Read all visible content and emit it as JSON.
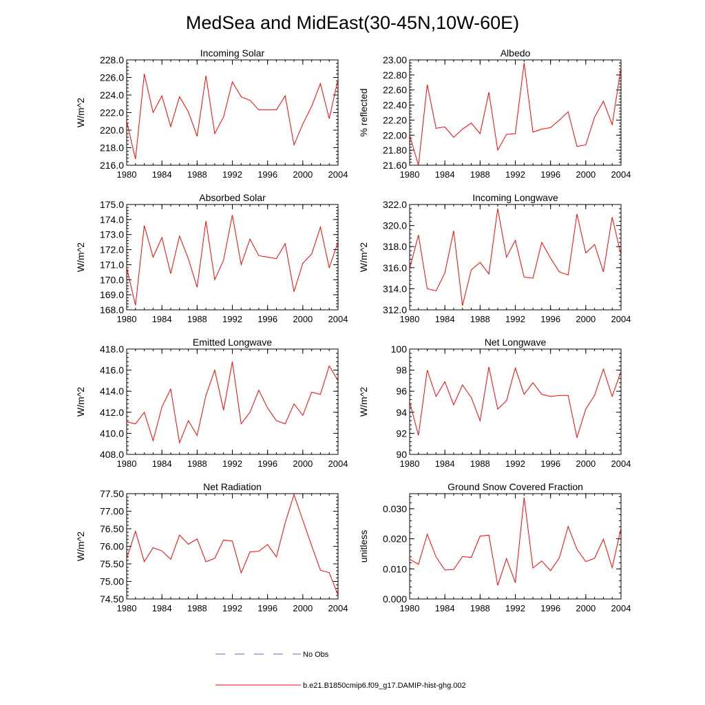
{
  "figure": {
    "title": "MedSea and MidEast(30-45N,10W-60E)",
    "legend": [
      {
        "label": "No Obs",
        "color": "#6666cc",
        "style": "dashed"
      },
      {
        "label": "b.e21.B1850cmip6.f09_g17.DAMIP-hist-ghg.002",
        "color": "#ff0000",
        "style": "solid"
      }
    ]
  },
  "chart_data": [
    {
      "type": "line",
      "title": "Incoming Solar",
      "ylabel": "W/m^2",
      "xlim": [
        1980,
        2004
      ],
      "ylim": [
        216.0,
        228.0
      ],
      "yticks": [
        216.0,
        218.0,
        220.0,
        222.0,
        224.0,
        226.0,
        228.0
      ],
      "ytick_labels": [
        "216.0",
        "218.0",
        "220.0",
        "222.0",
        "224.0",
        "226.0",
        "228.0"
      ],
      "xticks": [
        1980,
        1984,
        1988,
        1992,
        1996,
        2000,
        2004
      ],
      "xtick_labels": [
        "1980",
        "1984",
        "1988",
        "1992",
        "1996",
        "2000",
        "2004"
      ],
      "x": [
        1980,
        1981,
        1982,
        1983,
        1984,
        1985,
        1986,
        1987,
        1988,
        1989,
        1990,
        1991,
        1992,
        1993,
        1994,
        1995,
        1996,
        1997,
        1998,
        1999,
        2000,
        2001,
        2002,
        2003,
        2004
      ],
      "series": [
        {
          "color": "#ff0000",
          "values": [
            221.0,
            216.7,
            226.4,
            222.0,
            223.9,
            220.4,
            223.8,
            222.1,
            219.3,
            226.2,
            219.6,
            221.5,
            225.5,
            223.8,
            223.4,
            222.3,
            222.3,
            222.3,
            223.9,
            218.3,
            220.7,
            222.7,
            225.3,
            221.3,
            225.8
          ]
        }
      ]
    },
    {
      "type": "line",
      "title": "Albedo",
      "ylabel": "% reflected",
      "xlim": [
        1980,
        2004
      ],
      "ylim": [
        21.6,
        23.0
      ],
      "yticks": [
        21.6,
        21.8,
        22.0,
        22.2,
        22.4,
        22.6,
        22.8,
        23.0
      ],
      "ytick_labels": [
        "21.60",
        "21.80",
        "22.00",
        "22.20",
        "22.40",
        "22.60",
        "22.80",
        "23.00"
      ],
      "xticks": [
        1980,
        1984,
        1988,
        1992,
        1996,
        2000,
        2004
      ],
      "xtick_labels": [
        "1980",
        "1984",
        "1988",
        "1992",
        "1996",
        "2000",
        "2004"
      ],
      "x": [
        1980,
        1981,
        1982,
        1983,
        1984,
        1985,
        1986,
        1987,
        1988,
        1989,
        1990,
        1991,
        1992,
        1993,
        1994,
        1995,
        1996,
        1997,
        1998,
        1999,
        2000,
        2001,
        2002,
        2003,
        2004
      ],
      "series": [
        {
          "color": "#ff0000",
          "values": [
            22.0,
            21.6,
            22.67,
            22.09,
            22.11,
            21.97,
            22.08,
            22.16,
            22.02,
            22.57,
            21.8,
            22.01,
            22.02,
            22.96,
            22.04,
            22.08,
            22.1,
            22.2,
            22.31,
            21.85,
            21.87,
            22.24,
            22.45,
            22.14,
            22.9
          ]
        }
      ]
    },
    {
      "type": "line",
      "title": "Absorbed Solar",
      "ylabel": "W/m^2",
      "xlim": [
        1980,
        2004
      ],
      "ylim": [
        168.0,
        175.0
      ],
      "yticks": [
        168.0,
        169.0,
        170.0,
        171.0,
        172.0,
        173.0,
        174.0,
        175.0
      ],
      "ytick_labels": [
        "168.0",
        "169.0",
        "170.0",
        "171.0",
        "172.0",
        "173.0",
        "174.0",
        "175.0"
      ],
      "xticks": [
        1980,
        1984,
        1988,
        1992,
        1996,
        2000,
        2004
      ],
      "xtick_labels": [
        "1980",
        "1984",
        "1988",
        "1992",
        "1996",
        "2000",
        "2004"
      ],
      "x": [
        1980,
        1981,
        1982,
        1983,
        1984,
        1985,
        1986,
        1987,
        1988,
        1989,
        1990,
        1991,
        1992,
        1993,
        1994,
        1995,
        1996,
        1997,
        1998,
        1999,
        2000,
        2001,
        2002,
        2003,
        2004
      ],
      "series": [
        {
          "color": "#ff0000",
          "values": [
            170.8,
            168.3,
            173.6,
            171.5,
            172.8,
            170.4,
            172.9,
            171.4,
            169.5,
            173.9,
            170.0,
            171.3,
            174.3,
            171.0,
            172.7,
            171.6,
            171.5,
            171.4,
            172.4,
            169.2,
            171.1,
            171.7,
            173.5,
            170.8,
            172.5
          ]
        }
      ]
    },
    {
      "type": "line",
      "title": "Incoming Longwave",
      "ylabel": "W/m^2",
      "xlim": [
        1980,
        2004
      ],
      "ylim": [
        312.0,
        322.0
      ],
      "yticks": [
        312.0,
        314.0,
        316.0,
        318.0,
        320.0,
        322.0
      ],
      "ytick_labels": [
        "312.0",
        "314.0",
        "316.0",
        "318.0",
        "320.0",
        "322.0"
      ],
      "xticks": [
        1980,
        1984,
        1988,
        1992,
        1996,
        2000,
        2004
      ],
      "xtick_labels": [
        "1980",
        "1984",
        "1988",
        "1992",
        "1996",
        "2000",
        "2004"
      ],
      "x": [
        1980,
        1981,
        1982,
        1983,
        1984,
        1985,
        1986,
        1987,
        1988,
        1989,
        1990,
        1991,
        1992,
        1993,
        1994,
        1995,
        1996,
        1997,
        1998,
        1999,
        2000,
        2001,
        2002,
        2003,
        2004
      ],
      "series": [
        {
          "color": "#ff0000",
          "values": [
            315.9,
            319.1,
            314.0,
            313.8,
            315.5,
            319.5,
            312.4,
            315.8,
            316.5,
            315.4,
            321.6,
            317.0,
            318.6,
            315.1,
            315.0,
            318.4,
            316.9,
            315.6,
            315.3,
            321.1,
            317.4,
            318.2,
            315.6,
            320.8,
            317.2
          ]
        }
      ]
    },
    {
      "type": "line",
      "title": "Emitted Longwave",
      "ylabel": "W/m^2",
      "xlim": [
        1980,
        2004
      ],
      "ylim": [
        408.0,
        418.0
      ],
      "yticks": [
        408.0,
        410.0,
        412.0,
        414.0,
        416.0,
        418.0
      ],
      "ytick_labels": [
        "408.0",
        "410.0",
        "412.0",
        "414.0",
        "416.0",
        "418.0"
      ],
      "xticks": [
        1980,
        1984,
        1988,
        1992,
        1996,
        2000,
        2004
      ],
      "xtick_labels": [
        "1980",
        "1984",
        "1988",
        "1992",
        "1996",
        "2000",
        "2004"
      ],
      "x": [
        1980,
        1981,
        1982,
        1983,
        1984,
        1985,
        1986,
        1987,
        1988,
        1989,
        1990,
        1991,
        1992,
        1993,
        1994,
        1995,
        1996,
        1997,
        1998,
        1999,
        2000,
        2001,
        2002,
        2003,
        2004
      ],
      "series": [
        {
          "color": "#ff0000",
          "values": [
            411.1,
            410.9,
            412.0,
            409.3,
            412.5,
            414.2,
            409.1,
            411.2,
            409.8,
            413.6,
            416.0,
            412.2,
            416.8,
            410.9,
            412.0,
            414.1,
            412.4,
            411.2,
            410.9,
            412.8,
            411.7,
            413.9,
            413.7,
            416.4,
            415.0
          ]
        }
      ]
    },
    {
      "type": "line",
      "title": "Net Longwave",
      "ylabel": "W/m^2",
      "xlim": [
        1980,
        2004
      ],
      "ylim": [
        90,
        100
      ],
      "yticks": [
        90,
        92,
        94,
        96,
        98,
        100
      ],
      "ytick_labels": [
        "90",
        "92",
        "94",
        "96",
        "98",
        "100"
      ],
      "xticks": [
        1980,
        1984,
        1988,
        1992,
        1996,
        2000,
        2004
      ],
      "xtick_labels": [
        "1980",
        "1984",
        "1988",
        "1992",
        "1996",
        "2000",
        "2004"
      ],
      "x": [
        1980,
        1981,
        1982,
        1983,
        1984,
        1985,
        1986,
        1987,
        1988,
        1989,
        1990,
        1991,
        1992,
        1993,
        1994,
        1995,
        1996,
        1997,
        1998,
        1999,
        2000,
        2001,
        2002,
        2003,
        2004
      ],
      "series": [
        {
          "color": "#ff0000",
          "values": [
            95.0,
            91.8,
            98.0,
            95.5,
            96.9,
            94.7,
            96.6,
            95.4,
            93.2,
            98.3,
            94.3,
            95.1,
            98.2,
            95.7,
            96.8,
            95.7,
            95.5,
            95.6,
            95.6,
            91.6,
            94.3,
            95.6,
            98.1,
            95.5,
            97.9
          ]
        }
      ]
    },
    {
      "type": "line",
      "title": "Net Radiation",
      "ylabel": "W/m^2",
      "xlim": [
        1980,
        2004
      ],
      "ylim": [
        74.5,
        77.5
      ],
      "yticks": [
        74.5,
        75.0,
        75.5,
        76.0,
        76.5,
        77.0,
        77.5
      ],
      "ytick_labels": [
        "74.50",
        "75.00",
        "75.50",
        "76.00",
        "76.50",
        "77.00",
        "77.50"
      ],
      "xticks": [
        1980,
        1984,
        1988,
        1992,
        1996,
        2000,
        2004
      ],
      "xtick_labels": [
        "1980",
        "1984",
        "1988",
        "1992",
        "1996",
        "2000",
        "2004"
      ],
      "x": [
        1980,
        1981,
        1982,
        1983,
        1984,
        1985,
        1986,
        1987,
        1988,
        1989,
        1990,
        1991,
        1992,
        1993,
        1994,
        1995,
        1996,
        1997,
        1998,
        1999,
        2000,
        2001,
        2002,
        2003,
        2004
      ],
      "series": [
        {
          "color": "#ff0000",
          "values": [
            75.65,
            76.43,
            75.56,
            75.96,
            75.87,
            75.63,
            76.32,
            76.06,
            76.21,
            75.56,
            75.66,
            76.18,
            76.15,
            75.24,
            75.84,
            75.86,
            76.05,
            75.7,
            76.67,
            77.47,
            76.74,
            76.02,
            75.32,
            75.25,
            74.61
          ]
        }
      ]
    },
    {
      "type": "line",
      "title": "Ground Snow Covered Fraction",
      "ylabel": "unitless",
      "xlim": [
        1980,
        2004
      ],
      "ylim": [
        0.0,
        0.035
      ],
      "yticks": [
        0.0,
        0.01,
        0.02,
        0.03
      ],
      "ytick_labels": [
        "0.000",
        "0.010",
        "0.020",
        "0.030"
      ],
      "xticks": [
        1980,
        1984,
        1988,
        1992,
        1996,
        2000,
        2004
      ],
      "xtick_labels": [
        "1980",
        "1984",
        "1988",
        "1992",
        "1996",
        "2000",
        "2004"
      ],
      "x": [
        1980,
        1981,
        1982,
        1983,
        1984,
        1985,
        1986,
        1987,
        1988,
        1989,
        1990,
        1991,
        1992,
        1993,
        1994,
        1995,
        1996,
        1997,
        1998,
        1999,
        2000,
        2001,
        2002,
        2003,
        2004
      ],
      "series": [
        {
          "color": "#ff0000",
          "values": [
            0.0132,
            0.0115,
            0.0215,
            0.014,
            0.0096,
            0.0098,
            0.0141,
            0.0138,
            0.0209,
            0.0212,
            0.0045,
            0.0134,
            0.0054,
            0.0337,
            0.0103,
            0.0126,
            0.0094,
            0.0137,
            0.0241,
            0.0165,
            0.0124,
            0.0135,
            0.0199,
            0.0104,
            0.0235
          ]
        }
      ]
    }
  ]
}
